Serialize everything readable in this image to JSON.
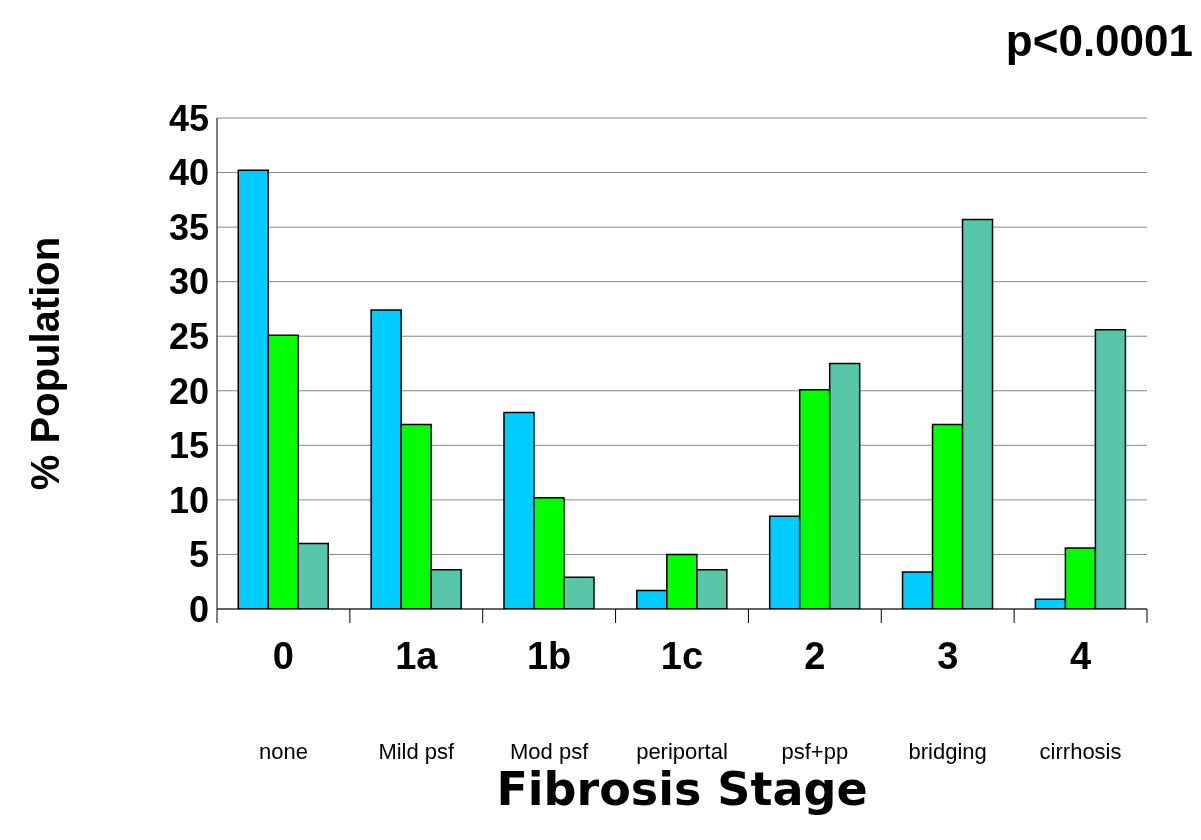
{
  "chart_data": {
    "type": "bar",
    "title": "p<0.0001",
    "xlabel": "Fibrosis Stage",
    "ylabel": "% Population",
    "categories": [
      "0\nnone",
      "1a\nMild psf",
      "1b\nMod psf",
      "1c\nperiportal",
      "2\npsf+pp",
      "3\nbridging",
      "4\ncirrhosis"
    ],
    "series": [
      {
        "color": "#00ccff",
        "values": [
          40.2,
          27.4,
          18.0,
          1.7,
          8.5,
          3.4,
          0.9
        ]
      },
      {
        "color": "#00ff00",
        "values": [
          25.1,
          16.9,
          10.2,
          5.0,
          20.1,
          16.9,
          5.6
        ]
      },
      {
        "color": "#57c7a8",
        "values": [
          6.0,
          3.6,
          2.9,
          3.6,
          22.5,
          35.7,
          25.6
        ]
      }
    ],
    "ylim": [
      0,
      45
    ],
    "yticks": [
      0,
      5,
      10,
      15,
      20,
      25,
      30,
      35,
      40,
      45
    ],
    "grid": "y",
    "legend": false
  }
}
